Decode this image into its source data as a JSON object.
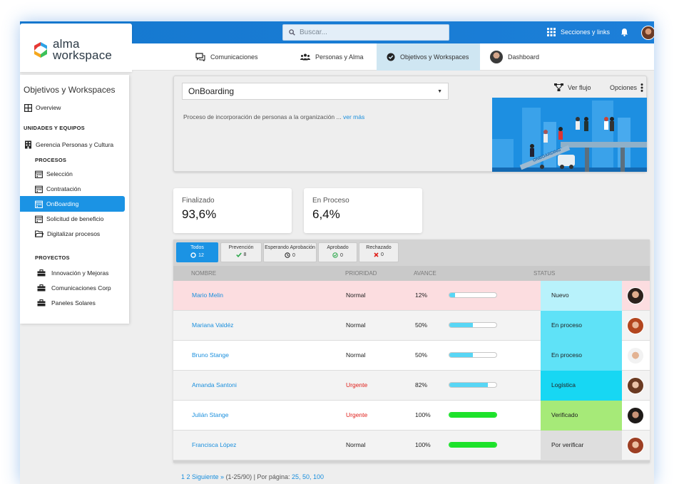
{
  "header": {
    "search_placeholder": "Buscar...",
    "sections_label": "Secciones y links"
  },
  "logo": {
    "line1": "alma",
    "line2": "workspace"
  },
  "tabs": [
    {
      "label": "Comunicaciones",
      "icon": "chat-icon"
    },
    {
      "label": "Personas y Alma",
      "icon": "people-icon"
    },
    {
      "label": "Objetivos y Workspaces",
      "icon": "check-circle-icon",
      "active": true
    },
    {
      "label": "Dashboard",
      "icon": "avatar"
    }
  ],
  "sidebar": {
    "title": "Objetivos y Workspaces",
    "overview": "Overview",
    "units_heading": "UNIDADES Y EQUIPOS",
    "unit": "Gerencia Personas y Cultura",
    "processes_heading": "PROCESOS",
    "processes": [
      {
        "label": "Selección"
      },
      {
        "label": "Contratación"
      },
      {
        "label": "OnBoarding",
        "selected": true
      },
      {
        "label": "Solicitud de beneficio"
      },
      {
        "label": "Digitalizar procesos"
      }
    ],
    "projects_heading": "PROYECTOS",
    "projects": [
      {
        "label": "Innovación y Mejoras"
      },
      {
        "label": "Comunicaciones Corp"
      },
      {
        "label": "Paneles Solares"
      }
    ]
  },
  "project": {
    "selected": "OnBoarding",
    "description": "Proceso de incorporación de personas a la organización ...",
    "more_link": "ver más",
    "flow_label": "Ver flujo",
    "options_label": "Opciones",
    "banner_text": "ONBOARDING"
  },
  "stats": [
    {
      "label": "Finalizado",
      "value": "93,6%"
    },
    {
      "label": "En Proceso",
      "value": "6,4%"
    }
  ],
  "filters": [
    {
      "label": "Todos",
      "count": "12",
      "icon": "circle-icon",
      "active": true
    },
    {
      "label": "Prevención",
      "count": "8",
      "icon": "check-icon"
    },
    {
      "label": "Esperando Aprobación",
      "count": "0",
      "icon": "clock-icon"
    },
    {
      "label": "Aprobado",
      "count": "0",
      "icon": "check-circle-icon"
    },
    {
      "label": "Rechazado",
      "count": "0",
      "icon": "x-icon"
    }
  ],
  "table": {
    "headers": {
      "name": "NOMBRE",
      "priority": "PRIORIDAD",
      "progress": "AVANCE",
      "status": "STATUS"
    },
    "rows": [
      {
        "name": "Mario Melin",
        "priority": "Normal",
        "progress_text": "12%",
        "progress": 0.12,
        "status": "Nuevo",
        "status_color": "#b8f2fb",
        "row_color": "#fcdde0"
      },
      {
        "name": "Mariana Valdéz",
        "priority": "Normal",
        "progress_text": "50%",
        "progress": 0.5,
        "status": "En proceso",
        "status_color": "#5fe2f7",
        "row_color": "#f3f3f3"
      },
      {
        "name": "Bruno Stange",
        "priority": "Normal",
        "progress_text": "50%",
        "progress": 0.5,
        "status": "En proceso",
        "status_color": "#5fe2f7",
        "row_color": "#ffffff"
      },
      {
        "name": "Amanda Santoni",
        "priority": "Urgente",
        "progress_text": "82%",
        "progress": 0.82,
        "status": "Logística",
        "status_color": "#17d7f3",
        "row_color": "#f3f3f3"
      },
      {
        "name": "Julián Stange",
        "priority": "Urgente",
        "progress_text": "100%",
        "progress": 1.0,
        "status": "Verificado",
        "status_color": "#a6ea78",
        "row_color": "#ffffff"
      },
      {
        "name": "Francisca López",
        "priority": "Normal",
        "progress_text": "100%",
        "progress": 1.0,
        "status": "Por verificar",
        "status_color": "#dedede",
        "row_color": "#f3f3f3"
      }
    ]
  },
  "pager": {
    "pages": "1 2 Siguiente »",
    "range": "(1-25/90) | Por página:",
    "sizes": "25, 50, 100"
  }
}
